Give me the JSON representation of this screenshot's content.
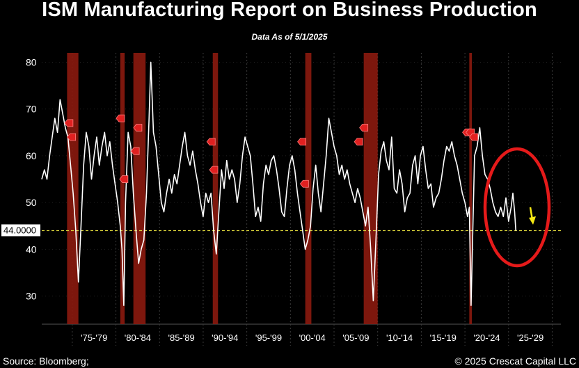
{
  "title": "ISM Manufacturing Report on Business Production",
  "subtitle": "Data As of 5/1/2025",
  "source": "Source: Bloomberg;",
  "copyright": "© 2025 Crescat Capital LLC",
  "colors": {
    "background": "#000000",
    "series": "#ffffff",
    "recession": "#8b1a0e",
    "reference_line": "#d8d23a",
    "annotation_circle": "#e51a1a",
    "annotation_arrow": "#f5e814"
  },
  "chart_data": {
    "type": "line",
    "ylim": [
      24,
      82
    ],
    "xlim": [
      1971.0,
      2030.5
    ],
    "y_ticks": [
      30,
      40,
      50,
      60,
      70,
      80
    ],
    "y_tick_labels": [
      "30",
      "40",
      "50",
      "60",
      "70",
      "80"
    ],
    "x_tick_labels": [
      {
        "label": "'75-'79",
        "x": 1977.0
      },
      {
        "label": "'80-'84",
        "x": 1982.0
      },
      {
        "label": "'85-'89",
        "x": 1987.0
      },
      {
        "label": "'90-'94",
        "x": 1992.0
      },
      {
        "label": "'95-'99",
        "x": 1997.0
      },
      {
        "label": "'00-'04",
        "x": 2002.0
      },
      {
        "label": "'05-'09",
        "x": 2007.0
      },
      {
        "label": "'10-'14",
        "x": 2012.0
      },
      {
        "label": "'15-'19",
        "x": 2017.0
      },
      {
        "label": "'20-'24",
        "x": 2022.0
      },
      {
        "label": "'25-'29",
        "x": 2027.0
      }
    ],
    "x_dividers": [
      1974.5,
      1979.5,
      1984.5,
      1989.5,
      1994.5,
      1999.5,
      2004.5,
      2009.5,
      2014.5,
      2019.5,
      2024.5,
      2029.5
    ],
    "grid": true,
    "reference_line": {
      "value": 44.0,
      "label": "44.0000"
    },
    "recession_bands": [
      [
        1973.9,
        1975.2
      ],
      [
        1980.0,
        1980.5
      ],
      [
        1981.5,
        1982.9
      ],
      [
        1990.6,
        1991.2
      ],
      [
        2001.2,
        2001.9
      ],
      [
        2007.9,
        2009.5
      ],
      [
        2020.0,
        2020.3
      ]
    ],
    "series": [
      {
        "values": [
          [
            1971.0,
            55
          ],
          [
            1971.3,
            57
          ],
          [
            1971.6,
            55
          ],
          [
            1971.9,
            60
          ],
          [
            1972.2,
            64
          ],
          [
            1972.5,
            68
          ],
          [
            1972.8,
            65
          ],
          [
            1973.1,
            72
          ],
          [
            1973.4,
            69
          ],
          [
            1973.7,
            66
          ],
          [
            1974.0,
            64
          ],
          [
            1974.3,
            58
          ],
          [
            1974.6,
            52
          ],
          [
            1974.9,
            44
          ],
          [
            1975.2,
            33
          ],
          [
            1975.5,
            45
          ],
          [
            1975.8,
            58
          ],
          [
            1976.1,
            65
          ],
          [
            1976.4,
            62
          ],
          [
            1976.7,
            55
          ],
          [
            1977.0,
            60
          ],
          [
            1977.3,
            64
          ],
          [
            1977.6,
            58
          ],
          [
            1977.9,
            62
          ],
          [
            1978.2,
            65
          ],
          [
            1978.5,
            60
          ],
          [
            1978.8,
            63
          ],
          [
            1979.1,
            58
          ],
          [
            1979.4,
            54
          ],
          [
            1979.7,
            50
          ],
          [
            1980.0,
            45
          ],
          [
            1980.2,
            40
          ],
          [
            1980.4,
            28
          ],
          [
            1980.6,
            50
          ],
          [
            1980.9,
            65
          ],
          [
            1981.2,
            62
          ],
          [
            1981.5,
            52
          ],
          [
            1981.8,
            44
          ],
          [
            1982.1,
            37
          ],
          [
            1982.4,
            40
          ],
          [
            1982.7,
            42
          ],
          [
            1983.0,
            52
          ],
          [
            1983.3,
            68
          ],
          [
            1983.5,
            80
          ],
          [
            1983.8,
            65
          ],
          [
            1984.1,
            62
          ],
          [
            1984.4,
            56
          ],
          [
            1984.7,
            50
          ],
          [
            1985.0,
            48
          ],
          [
            1985.3,
            52
          ],
          [
            1985.6,
            55
          ],
          [
            1985.9,
            52
          ],
          [
            1986.2,
            56
          ],
          [
            1986.5,
            54
          ],
          [
            1986.8,
            58
          ],
          [
            1987.1,
            62
          ],
          [
            1987.4,
            65
          ],
          [
            1987.7,
            60
          ],
          [
            1988.0,
            58
          ],
          [
            1988.3,
            61
          ],
          [
            1988.6,
            57
          ],
          [
            1988.9,
            54
          ],
          [
            1989.2,
            50
          ],
          [
            1989.5,
            47
          ],
          [
            1989.8,
            52
          ],
          [
            1990.1,
            50
          ],
          [
            1990.4,
            52
          ],
          [
            1990.7,
            44
          ],
          [
            1991.0,
            39
          ],
          [
            1991.3,
            48
          ],
          [
            1991.6,
            57
          ],
          [
            1991.9,
            53
          ],
          [
            1992.2,
            59
          ],
          [
            1992.5,
            55
          ],
          [
            1992.8,
            57
          ],
          [
            1993.1,
            55
          ],
          [
            1993.4,
            50
          ],
          [
            1993.7,
            54
          ],
          [
            1994.0,
            60
          ],
          [
            1994.3,
            64
          ],
          [
            1994.6,
            62
          ],
          [
            1994.9,
            60
          ],
          [
            1995.2,
            54
          ],
          [
            1995.5,
            47
          ],
          [
            1995.8,
            49
          ],
          [
            1996.1,
            46
          ],
          [
            1996.4,
            54
          ],
          [
            1996.7,
            58
          ],
          [
            1997.0,
            56
          ],
          [
            1997.3,
            59
          ],
          [
            1997.6,
            60
          ],
          [
            1997.9,
            57
          ],
          [
            1998.2,
            53
          ],
          [
            1998.5,
            48
          ],
          [
            1998.8,
            47
          ],
          [
            1999.1,
            53
          ],
          [
            1999.4,
            58
          ],
          [
            1999.7,
            60
          ],
          [
            2000.0,
            57
          ],
          [
            2000.3,
            52
          ],
          [
            2000.6,
            48
          ],
          [
            2000.9,
            44
          ],
          [
            2001.2,
            40
          ],
          [
            2001.5,
            42
          ],
          [
            2001.8,
            45
          ],
          [
            2002.1,
            53
          ],
          [
            2002.4,
            58
          ],
          [
            2002.7,
            52
          ],
          [
            2003.0,
            48
          ],
          [
            2003.3,
            54
          ],
          [
            2003.6,
            60
          ],
          [
            2003.9,
            68
          ],
          [
            2004.2,
            65
          ],
          [
            2004.5,
            62
          ],
          [
            2004.8,
            60
          ],
          [
            2005.1,
            56
          ],
          [
            2005.4,
            58
          ],
          [
            2005.7,
            55
          ],
          [
            2006.0,
            57
          ],
          [
            2006.3,
            54
          ],
          [
            2006.6,
            52
          ],
          [
            2006.9,
            50
          ],
          [
            2007.2,
            53
          ],
          [
            2007.5,
            51
          ],
          [
            2007.8,
            48
          ],
          [
            2008.1,
            45
          ],
          [
            2008.4,
            49
          ],
          [
            2008.7,
            40
          ],
          [
            2009.0,
            29
          ],
          [
            2009.3,
            42
          ],
          [
            2009.6,
            56
          ],
          [
            2009.9,
            61
          ],
          [
            2010.2,
            63
          ],
          [
            2010.5,
            59
          ],
          [
            2010.8,
            57
          ],
          [
            2011.1,
            64
          ],
          [
            2011.4,
            53
          ],
          [
            2011.7,
            52
          ],
          [
            2012.0,
            57
          ],
          [
            2012.3,
            54
          ],
          [
            2012.6,
            48
          ],
          [
            2012.9,
            51
          ],
          [
            2013.2,
            52
          ],
          [
            2013.5,
            58
          ],
          [
            2013.8,
            60
          ],
          [
            2014.1,
            54
          ],
          [
            2014.4,
            60
          ],
          [
            2014.7,
            62
          ],
          [
            2015.0,
            57
          ],
          [
            2015.3,
            53
          ],
          [
            2015.6,
            54
          ],
          [
            2015.9,
            49
          ],
          [
            2016.2,
            51
          ],
          [
            2016.5,
            52
          ],
          [
            2016.8,
            55
          ],
          [
            2017.1,
            59
          ],
          [
            2017.4,
            62
          ],
          [
            2017.7,
            61
          ],
          [
            2018.0,
            63
          ],
          [
            2018.3,
            60
          ],
          [
            2018.6,
            58
          ],
          [
            2018.9,
            55
          ],
          [
            2019.2,
            52
          ],
          [
            2019.5,
            50
          ],
          [
            2019.8,
            47
          ],
          [
            2020.0,
            49
          ],
          [
            2020.2,
            28
          ],
          [
            2020.4,
            44
          ],
          [
            2020.6,
            60
          ],
          [
            2020.9,
            62
          ],
          [
            2021.2,
            66
          ],
          [
            2021.5,
            60
          ],
          [
            2021.8,
            56
          ],
          [
            2022.1,
            55
          ],
          [
            2022.4,
            53
          ],
          [
            2022.7,
            50
          ],
          [
            2023.0,
            48
          ],
          [
            2023.3,
            47
          ],
          [
            2023.6,
            49
          ],
          [
            2023.9,
            47
          ],
          [
            2024.2,
            51
          ],
          [
            2024.5,
            46
          ],
          [
            2024.8,
            49
          ],
          [
            2025.0,
            52
          ],
          [
            2025.2,
            48
          ],
          [
            2025.33,
            44
          ]
        ]
      }
    ],
    "event_markers": [
      [
        1974.1,
        67
      ],
      [
        1974.4,
        64
      ],
      [
        1980.0,
        68
      ],
      [
        1980.4,
        55
      ],
      [
        1981.7,
        61
      ],
      [
        1982.0,
        66
      ],
      [
        1990.4,
        63
      ],
      [
        1990.7,
        57
      ],
      [
        2000.8,
        63
      ],
      [
        2001.1,
        54
      ],
      [
        2007.3,
        63
      ],
      [
        2007.9,
        66
      ],
      [
        2019.7,
        65
      ],
      [
        2020.1,
        65
      ],
      [
        2020.5,
        64
      ]
    ]
  }
}
